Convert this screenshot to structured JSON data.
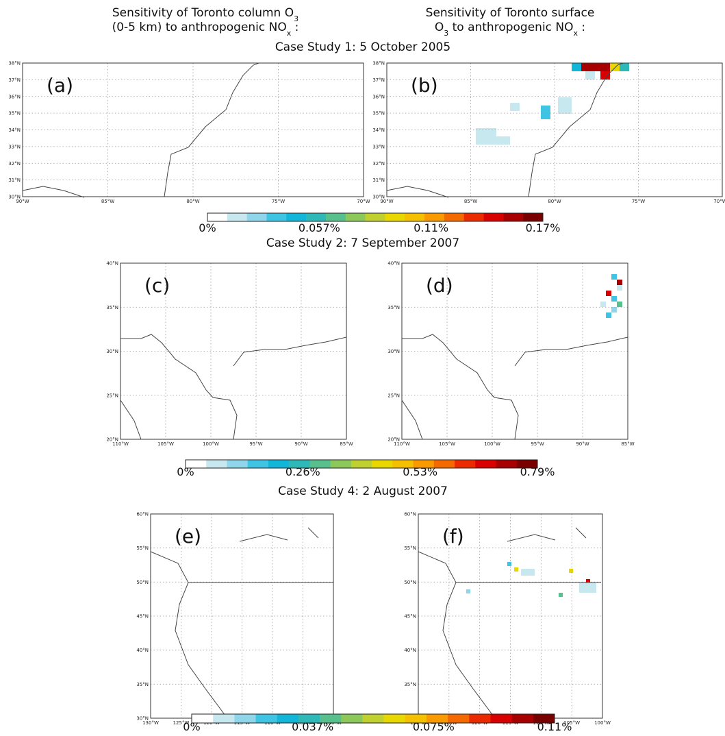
{
  "headers": [
    {
      "line1": [
        "Sensitivity of Toronto column O",
        "3"
      ],
      "line2": [
        "(0-5 km) to anthropogenic NO",
        "x",
        " :"
      ]
    },
    {
      "line1": [
        "Sensitivity of Toronto surface"
      ],
      "line2": [
        "O",
        "3",
        " to anthropogenic NO",
        "x",
        " :"
      ]
    }
  ],
  "cases": [
    {
      "title": "Case Study 1: 5 October 2005",
      "yticks": [
        "30°N",
        "31°N",
        "32°N",
        "33°N",
        "34°N",
        "35°N",
        "36°N",
        "37°N",
        "38°N"
      ],
      "xticks": [
        "90°W",
        "85°W",
        "80°W",
        "75°W",
        "70°W"
      ],
      "panels": [
        {
          "label": "(a)"
        },
        {
          "label": "(b)"
        }
      ],
      "colorbar": [
        "0%",
        "0.057%",
        "0.11%",
        "0.17%"
      ]
    },
    {
      "title": "Case Study 2: 7 September 2007",
      "yticks": [
        "20°N",
        "25°N",
        "30°N",
        "35°N",
        "40°N"
      ],
      "xticks": [
        "110°W",
        "105°W",
        "100°W",
        "95°W",
        "90°W",
        "85°W"
      ],
      "panels": [
        {
          "label": "(c)"
        },
        {
          "label": "(d)"
        }
      ],
      "colorbar": [
        "0%",
        "0.26%",
        "0.53%",
        "0.79%"
      ]
    },
    {
      "title": "Case Study 4: 2 August 2007",
      "yticks": [
        "30°N",
        "35°N",
        "40°N",
        "45°N",
        "50°N",
        "55°N",
        "60°N"
      ],
      "xticks": [
        "130°W",
        "125°W",
        "120°W",
        "115°W",
        "110°W",
        "105°W",
        "100°W"
      ],
      "panels": [
        {
          "label": "(e)"
        },
        {
          "label": "(f)"
        }
      ],
      "colorbar": [
        "0%",
        "0.037%",
        "0.075%",
        "0.11%"
      ]
    }
  ]
}
